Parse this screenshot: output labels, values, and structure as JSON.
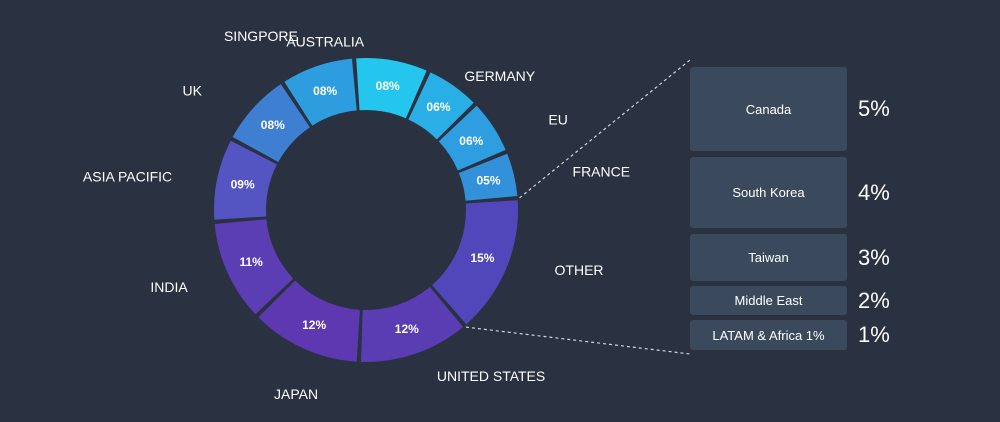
{
  "chart_data": {
    "type": "pie",
    "variant": "donut",
    "donut": {
      "slices": [
        {
          "name": "AUSTRALIA",
          "label": "08%",
          "value": 8,
          "color": "#24c6ee"
        },
        {
          "name": "GERMANY",
          "label": "06%",
          "value": 6,
          "color": "#2aaee6"
        },
        {
          "name": "EU",
          "label": "06%",
          "value": 6,
          "color": "#2f9ee0"
        },
        {
          "name": "FRANCE",
          "label": "05%",
          "value": 5,
          "color": "#3391da"
        },
        {
          "name": "OTHER",
          "label": "15%",
          "value": 15,
          "color": "#5147bb"
        },
        {
          "name": "UNITED STATES",
          "label": "12%",
          "value": 12,
          "color": "#5a3cb3"
        },
        {
          "name": "JAPAN",
          "label": "12%",
          "value": 12,
          "color": "#5d38b0"
        },
        {
          "name": "INDIA",
          "label": "11%",
          "value": 11,
          "color": "#5b3eb4"
        },
        {
          "name": "ASIA PACIFIC",
          "label": "09%",
          "value": 9,
          "color": "#5454c2"
        },
        {
          "name": "UK",
          "label": "08%",
          "value": 8,
          "color": "#3e7fd2"
        },
        {
          "name": "SINGPORE",
          "label": "08%",
          "value": 8,
          "color": "#2e9ddf"
        }
      ]
    },
    "other_breakdown": {
      "parent": "OTHER",
      "items": [
        {
          "name": "Canada",
          "label": "5%",
          "value": 5
        },
        {
          "name": "South Korea",
          "label": "4%",
          "value": 4
        },
        {
          "name": "Taiwan",
          "label": "3%",
          "value": 3
        },
        {
          "name": "Middle East",
          "label": "2%",
          "value": 2
        },
        {
          "name": "LATAM & Africa 1%",
          "label": "1%",
          "value": 1
        }
      ]
    },
    "colors": {
      "background": "#2a3140",
      "box": "#3a4a5c",
      "text": "#ffffff",
      "connector": "#d0d6de"
    }
  }
}
